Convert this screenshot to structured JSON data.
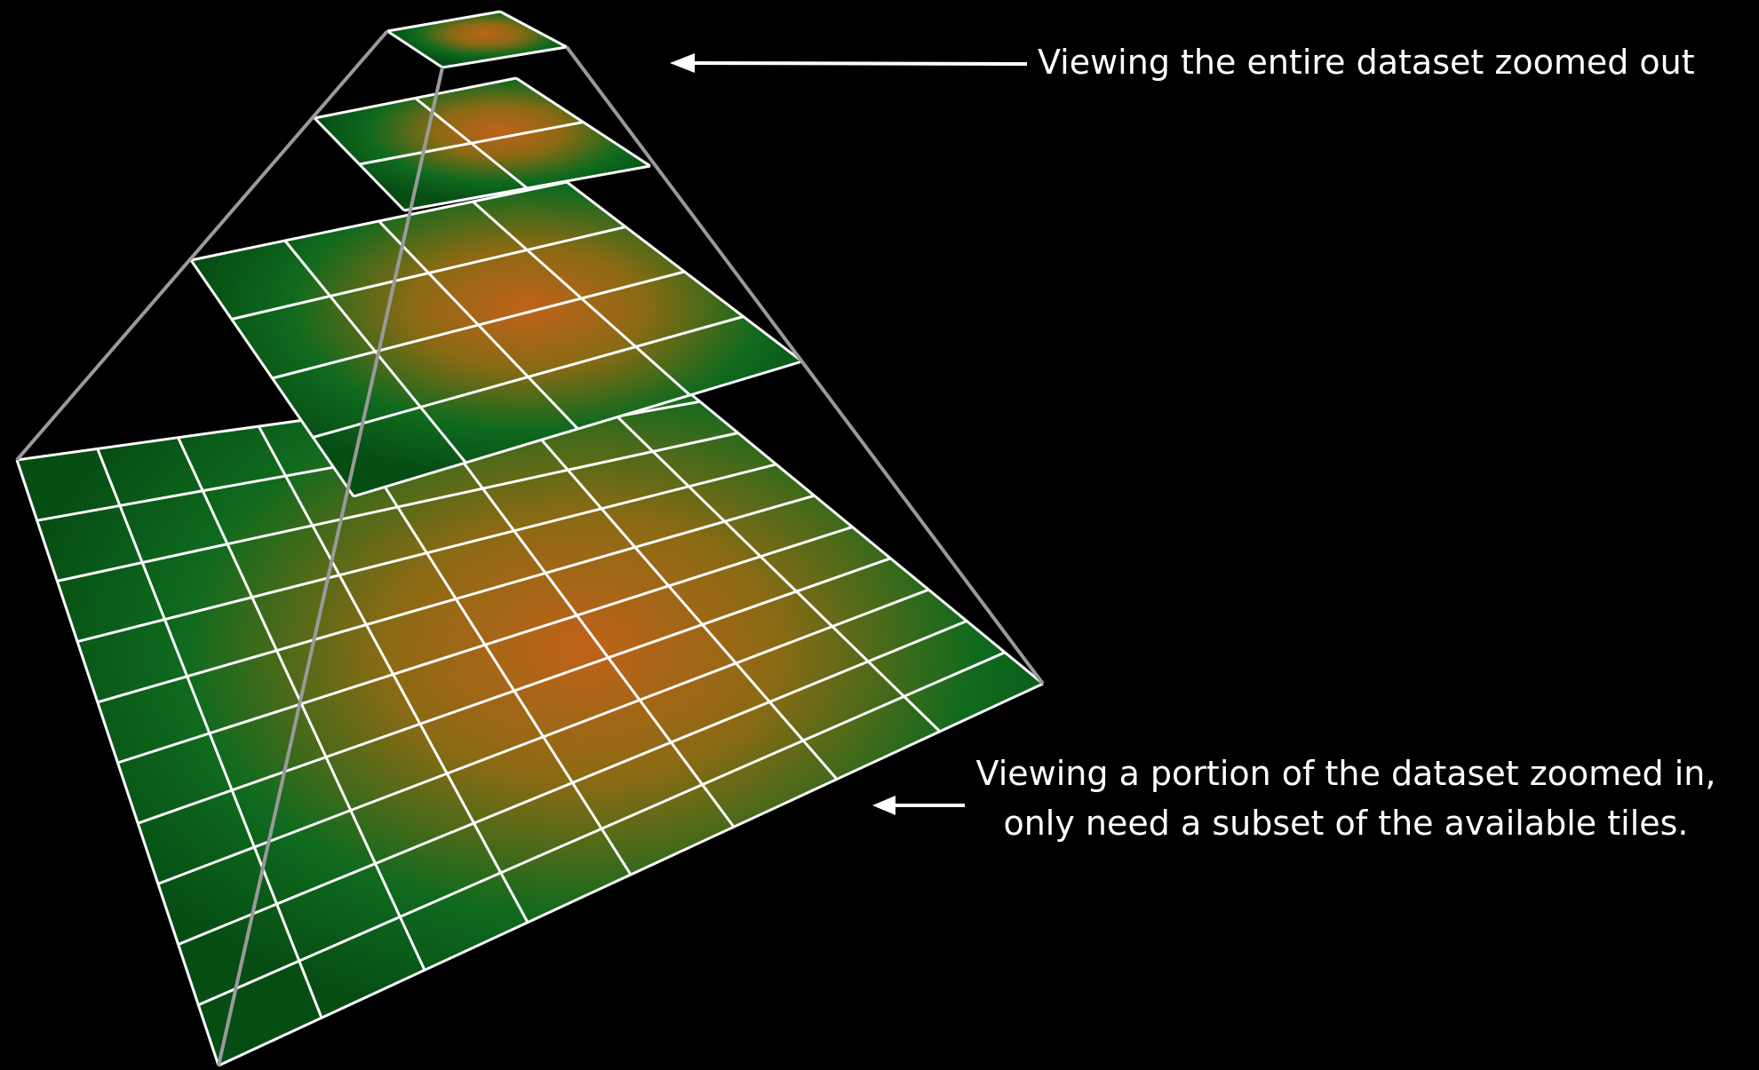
{
  "annotations": [
    {
      "lines": [
        "Viewing the entire dataset zoomed out"
      ]
    },
    {
      "lines": [
        "Viewing a portion of the dataset zoomed in,",
        "only need a subset of the available tiles."
      ]
    }
  ]
}
